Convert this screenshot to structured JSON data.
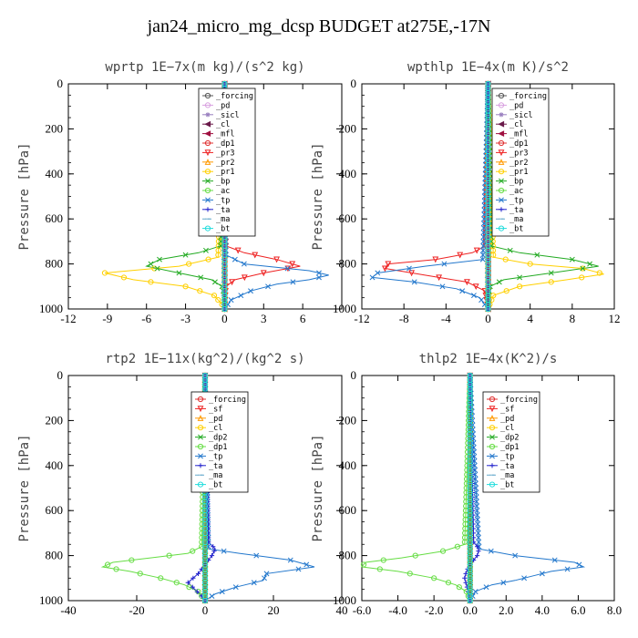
{
  "title": "jan24_micro_mg_dcsp  BUDGET at275E,-17N",
  "chart_data": [
    {
      "type": "line",
      "title": "wprtp   1E−7x(m kg)/(s^2 kg)",
      "ylabel": "Pressure [hPa]",
      "xlim": [
        -12,
        9
      ],
      "ylim": [
        0,
        1000
      ],
      "y_inverted": true,
      "xticks": [
        -12,
        -9,
        -6,
        -3,
        0,
        3,
        6
      ],
      "yticks": [
        0,
        200,
        400,
        600,
        800,
        1000
      ],
      "series": [
        {
          "name": "_forcing",
          "color": "#555555",
          "marker": "o",
          "p": [
            0,
            1000
          ],
          "x": [
            0,
            0
          ]
        },
        {
          "name": "_pd",
          "color": "#d8a0e0",
          "marker": "o",
          "p": [
            0,
            1000
          ],
          "x": [
            0,
            0
          ]
        },
        {
          "name": "_sicl",
          "color": "#9a80c0",
          "marker": "*",
          "p": [
            0,
            1000
          ],
          "x": [
            0,
            0
          ]
        },
        {
          "name": "_cl",
          "color": "#6a1a4a",
          "marker": "<",
          "p": [
            0,
            1000
          ],
          "x": [
            0,
            0
          ]
        },
        {
          "name": "_mfl",
          "color": "#a01040",
          "marker": "<",
          "p": [
            0,
            1000
          ],
          "x": [
            0,
            0
          ]
        },
        {
          "name": "_dp1",
          "color": "#e03030",
          "marker": "o",
          "p": [
            0,
            1000
          ],
          "x": [
            0,
            0
          ]
        },
        {
          "name": "_pr3",
          "color": "#ee2222",
          "marker": "v",
          "p": [
            0,
            720,
            750,
            780,
            810,
            840,
            870,
            900,
            1000
          ],
          "x": [
            0,
            0.1,
            1.5,
            4.0,
            5.8,
            3.0,
            0.8,
            0.1,
            0
          ]
        },
        {
          "name": "_pr2",
          "color": "#ff9900",
          "marker": "^",
          "p": [
            0,
            1000
          ],
          "x": [
            0,
            0
          ]
        },
        {
          "name": "_pr1",
          "color": "#ffd000",
          "marker": "o",
          "p": [
            0,
            770,
            810,
            840,
            870,
            900,
            940,
            980,
            1000
          ],
          "x": [
            0,
            -0.5,
            -3.5,
            -9.2,
            -7.0,
            -3.0,
            -0.8,
            -0.2,
            0
          ]
        },
        {
          "name": "_bp",
          "color": "#22aa22",
          "marker": "x",
          "p": [
            0,
            720,
            750,
            780,
            810,
            840,
            870,
            900,
            940,
            1000
          ],
          "x": [
            0,
            -0.3,
            -2.0,
            -5.0,
            -6.0,
            -3.5,
            -1.0,
            -0.2,
            0,
            0
          ]
        },
        {
          "name": "_ac",
          "color": "#66dd44",
          "marker": "o",
          "p": [
            0,
            1000
          ],
          "x": [
            0,
            0
          ]
        },
        {
          "name": "_tp",
          "color": "#2277cc",
          "marker": "x",
          "p": [
            0,
            760,
            800,
            830,
            850,
            870,
            890,
            920,
            960,
            1000
          ],
          "x": [
            0,
            0.1,
            1.5,
            6.5,
            8.0,
            6.5,
            4.0,
            2.0,
            0.5,
            0
          ]
        },
        {
          "name": "_ta",
          "color": "#2222cc",
          "marker": "+",
          "p": [
            0,
            1000
          ],
          "x": [
            0,
            0
          ]
        },
        {
          "name": "_ma",
          "color": "#66aacc",
          "marker": "-",
          "p": [
            0,
            1000
          ],
          "x": [
            0,
            0
          ]
        },
        {
          "name": "_bt",
          "color": "#22dddd",
          "marker": "o",
          "p": [
            0,
            1000
          ],
          "x": [
            0,
            0
          ]
        }
      ]
    },
    {
      "type": "line",
      "title": "wpthlp   1E−4x(m K)/s^2",
      "ylabel": "Pressure [hPa]",
      "xlim": [
        -12,
        12
      ],
      "ylim": [
        0,
        1000
      ],
      "y_inverted": true,
      "xticks": [
        -12,
        -8,
        -4,
        0,
        4,
        8,
        12
      ],
      "yticks": [
        0,
        200,
        400,
        600,
        800,
        1000
      ],
      "series": [
        {
          "name": "_forcing",
          "color": "#555555",
          "marker": "o",
          "p": [
            0,
            1000
          ],
          "x": [
            0,
            0
          ]
        },
        {
          "name": "_pd",
          "color": "#d8a0e0",
          "marker": "o",
          "p": [
            0,
            1000
          ],
          "x": [
            0,
            0
          ]
        },
        {
          "name": "_sicl",
          "color": "#9a80c0",
          "marker": "*",
          "p": [
            0,
            1000
          ],
          "x": [
            0,
            0
          ]
        },
        {
          "name": "_cl",
          "color": "#6a1a4a",
          "marker": "<",
          "p": [
            0,
            1000
          ],
          "x": [
            0,
            0
          ]
        },
        {
          "name": "_mfl",
          "color": "#a01040",
          "marker": "<",
          "p": [
            0,
            1000
          ],
          "x": [
            0,
            0
          ]
        },
        {
          "name": "_dp1",
          "color": "#e03030",
          "marker": "o",
          "p": [
            0,
            1000
          ],
          "x": [
            0,
            0
          ]
        },
        {
          "name": "_pr3",
          "color": "#ee2222",
          "marker": "v",
          "p": [
            0,
            720,
            750,
            780,
            800,
            820,
            850,
            880,
            920,
            1000
          ],
          "x": [
            0,
            -0.2,
            -1.5,
            -5.0,
            -9.5,
            -9.8,
            -6.0,
            -2.0,
            -0.3,
            0
          ]
        },
        {
          "name": "_pr2",
          "color": "#ff9900",
          "marker": "^",
          "p": [
            0,
            1000
          ],
          "x": [
            0,
            0
          ]
        },
        {
          "name": "_pr1",
          "color": "#ffd000",
          "marker": "o",
          "p": [
            0,
            770,
            800,
            820,
            845,
            870,
            900,
            940,
            1000
          ],
          "x": [
            0,
            0.5,
            4.0,
            9.0,
            11.0,
            7.5,
            3.0,
            0.5,
            0
          ]
        },
        {
          "name": "_bp",
          "color": "#22aa22",
          "marker": "x",
          "p": [
            0,
            720,
            750,
            780,
            810,
            840,
            870,
            900,
            940,
            1000
          ],
          "x": [
            0,
            0.3,
            3.0,
            8.0,
            10.5,
            6.0,
            1.5,
            0.2,
            0,
            0
          ]
        },
        {
          "name": "_ac",
          "color": "#66dd44",
          "marker": "o",
          "p": [
            0,
            1000
          ],
          "x": [
            0,
            0
          ]
        },
        {
          "name": "_tp",
          "color": "#2277cc",
          "marker": "x",
          "p": [
            0,
            780,
            810,
            840,
            860,
            880,
            910,
            950,
            1000
          ],
          "x": [
            0,
            -0.5,
            -6.0,
            -10.5,
            -11.0,
            -7.0,
            -3.0,
            -0.8,
            0
          ]
        },
        {
          "name": "_ta",
          "color": "#2222cc",
          "marker": "+",
          "p": [
            0,
            1000
          ],
          "x": [
            0,
            0
          ]
        },
        {
          "name": "_ma",
          "color": "#66aacc",
          "marker": "-",
          "p": [
            0,
            1000
          ],
          "x": [
            0,
            0
          ]
        },
        {
          "name": "_bt",
          "color": "#22dddd",
          "marker": "o",
          "p": [
            0,
            1000
          ],
          "x": [
            0,
            0
          ]
        }
      ]
    },
    {
      "type": "line",
      "title": "rtp2   1E−11x(kg^2)/(kg^2 s)",
      "ylabel": "Pressure [hPa]",
      "xlim": [
        -40,
        40
      ],
      "ylim": [
        0,
        1000
      ],
      "y_inverted": true,
      "xticks": [
        -40,
        -20,
        0,
        20,
        40
      ],
      "yticks": [
        0,
        200,
        400,
        600,
        800,
        1000
      ],
      "series": [
        {
          "name": "_forcing",
          "color": "#e03030",
          "marker": "o",
          "p": [
            0,
            1000
          ],
          "x": [
            0,
            0
          ]
        },
        {
          "name": "_sf",
          "color": "#ee2222",
          "marker": "v",
          "p": [
            0,
            1000
          ],
          "x": [
            0,
            0
          ]
        },
        {
          "name": "_pd",
          "color": "#ff9900",
          "marker": "^",
          "p": [
            0,
            1000
          ],
          "x": [
            0,
            0
          ]
        },
        {
          "name": "_cl",
          "color": "#ffd000",
          "marker": "o",
          "p": [
            0,
            1000
          ],
          "x": [
            0,
            0
          ]
        },
        {
          "name": "_dp2",
          "color": "#22aa22",
          "marker": "x",
          "p": [
            0,
            1000
          ],
          "x": [
            0,
            0
          ]
        },
        {
          "name": "_dp1",
          "color": "#66dd44",
          "marker": "o",
          "p": [
            0,
            760,
            790,
            810,
            830,
            850,
            870,
            900,
            930,
            960,
            1000
          ],
          "x": [
            0,
            -1,
            -5,
            -16,
            -27,
            -30,
            -22,
            -13,
            -6,
            -2,
            0
          ]
        },
        {
          "name": "_tp",
          "color": "#2277cc",
          "marker": "x",
          "p": [
            0,
            770,
            790,
            820,
            850,
            880,
            910,
            940,
            970,
            1000
          ],
          "x": [
            0,
            1,
            10,
            25,
            32,
            18,
            17,
            9,
            3,
            0
          ]
        },
        {
          "name": "_ta",
          "color": "#2222cc",
          "marker": "+",
          "p": [
            0,
            740,
            770,
            800,
            840,
            880,
            920,
            950,
            980,
            1000
          ],
          "x": [
            0,
            1,
            3,
            2,
            0,
            -2,
            -5,
            -3,
            -1,
            0
          ]
        },
        {
          "name": "_ma",
          "color": "#66aacc",
          "marker": "-",
          "p": [
            0,
            1000
          ],
          "x": [
            0,
            0
          ]
        },
        {
          "name": "_bt",
          "color": "#22dddd",
          "marker": "o",
          "p": [
            0,
            1000
          ],
          "x": [
            0,
            0
          ]
        }
      ]
    },
    {
      "type": "line",
      "title": "thlp2   1E−4x(K^2)/s",
      "ylabel": "Pressure [hPa]",
      "xlim": [
        -6,
        8
      ],
      "ylim": [
        0,
        1000
      ],
      "y_inverted": true,
      "xticks": [
        -6,
        -4,
        -2,
        0,
        2,
        4,
        6,
        8
      ],
      "xticklabels": [
        "-6.0",
        "-4.0",
        "-2.0",
        "0.0",
        "2.0",
        "4.0",
        "6.0",
        "8.0"
      ],
      "yticks": [
        0,
        200,
        400,
        600,
        800,
        1000
      ],
      "series": [
        {
          "name": "_forcing",
          "color": "#e03030",
          "marker": "o",
          "p": [
            0,
            1000
          ],
          "x": [
            0,
            0
          ]
        },
        {
          "name": "_sf",
          "color": "#ee2222",
          "marker": "v",
          "p": [
            0,
            1000
          ],
          "x": [
            0,
            0
          ]
        },
        {
          "name": "_pd",
          "color": "#ff9900",
          "marker": "^",
          "p": [
            0,
            1000
          ],
          "x": [
            0,
            0
          ]
        },
        {
          "name": "_cl",
          "color": "#ffd000",
          "marker": "o",
          "p": [
            0,
            1000
          ],
          "x": [
            0,
            0
          ]
        },
        {
          "name": "_dp2",
          "color": "#22aa22",
          "marker": "x",
          "p": [
            0,
            1000
          ],
          "x": [
            0,
            0
          ]
        },
        {
          "name": "_dp1",
          "color": "#66dd44",
          "marker": "o",
          "p": [
            0,
            750,
            780,
            810,
            830,
            850,
            870,
            900,
            930,
            960,
            1000
          ],
          "x": [
            0,
            -0.3,
            -1.5,
            -3.8,
            -5.8,
            -6.0,
            -4.0,
            -2.0,
            -0.8,
            -0.2,
            0
          ]
        },
        {
          "name": "_tp",
          "color": "#2277cc",
          "marker": "x",
          "p": [
            0,
            770,
            800,
            830,
            850,
            870,
            890,
            910,
            930,
            960,
            1000
          ],
          "x": [
            0,
            0.5,
            2.5,
            5.8,
            6.3,
            4.5,
            3.5,
            2.5,
            1.2,
            0.3,
            0
          ]
        },
        {
          "name": "_ta",
          "color": "#2222cc",
          "marker": "+",
          "p": [
            0,
            740,
            770,
            800,
            840,
            870,
            900,
            930,
            960,
            1000
          ],
          "x": [
            0,
            0.2,
            0.5,
            0.4,
            0,
            -0.2,
            -0.3,
            -0.2,
            -0.1,
            0
          ]
        },
        {
          "name": "_ma",
          "color": "#66aacc",
          "marker": "-",
          "p": [
            0,
            1000
          ],
          "x": [
            0,
            0
          ]
        },
        {
          "name": "_bt",
          "color": "#22dddd",
          "marker": "o",
          "p": [
            0,
            1000
          ],
          "x": [
            0,
            0
          ]
        }
      ]
    }
  ]
}
